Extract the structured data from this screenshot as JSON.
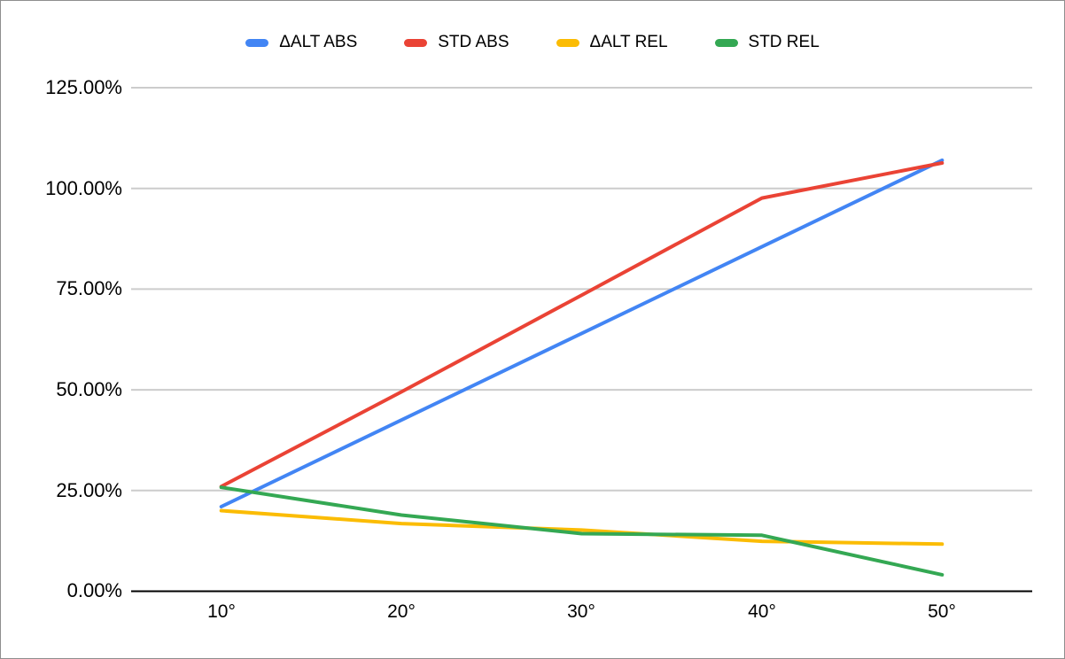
{
  "chart_data": {
    "type": "line",
    "categories": [
      "10°",
      "20°",
      "30°",
      "40°",
      "50°"
    ],
    "series": [
      {
        "name": "ΔALT ABS",
        "color": "#4285F4",
        "values": [
          21.0,
          42.5,
          64.0,
          85.5,
          107.0
        ]
      },
      {
        "name": "STD ABS",
        "color": "#EA4335",
        "values": [
          26.0,
          49.5,
          73.5,
          97.6,
          106.3
        ]
      },
      {
        "name": "ΔALT REL",
        "color": "#FBBC04",
        "values": [
          20.0,
          16.8,
          15.2,
          12.4,
          11.7
        ]
      },
      {
        "name": "STD REL",
        "color": "#34A853",
        "values": [
          25.8,
          18.9,
          14.3,
          13.9,
          4.1
        ]
      }
    ],
    "y_axis": {
      "ticks": [
        "125.00%",
        "100.00%",
        "75.00%",
        "50.00%",
        "25.00%",
        "0.00%"
      ],
      "min": 0,
      "max": 125,
      "step": 25,
      "format": "percent"
    },
    "x_axis": {
      "ticks": [
        "10°",
        "20°",
        "30°",
        "40°",
        "50°"
      ]
    },
    "legend_position": "top",
    "grid": true,
    "gridline_color": "#cccccc",
    "axis_color": "#000000",
    "background": "#ffffff"
  }
}
